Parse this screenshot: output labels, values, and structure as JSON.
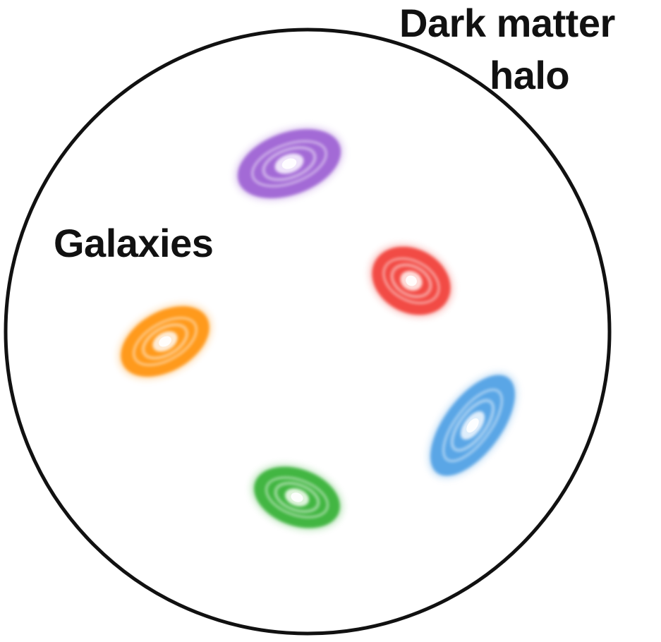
{
  "labels": {
    "halo_line1": "Dark matter",
    "halo_line2": "halo",
    "galaxies": "Galaxies"
  },
  "colors": {
    "halo_outline": "#111111",
    "background": "#ffffff"
  },
  "galaxies": [
    {
      "name": "purple-galaxy",
      "color": "#a36bd6",
      "core": "#f3eafc"
    },
    {
      "name": "red-galaxy",
      "color": "#f24b45",
      "core": "#ffe3e0"
    },
    {
      "name": "orange-galaxy",
      "color": "#ff9a1f",
      "core": "#fff0de"
    },
    {
      "name": "blue-galaxy",
      "color": "#5aa6e6",
      "core": "#e6f2fd"
    },
    {
      "name": "green-galaxy",
      "color": "#43b643",
      "core": "#e7f8e4"
    }
  ]
}
